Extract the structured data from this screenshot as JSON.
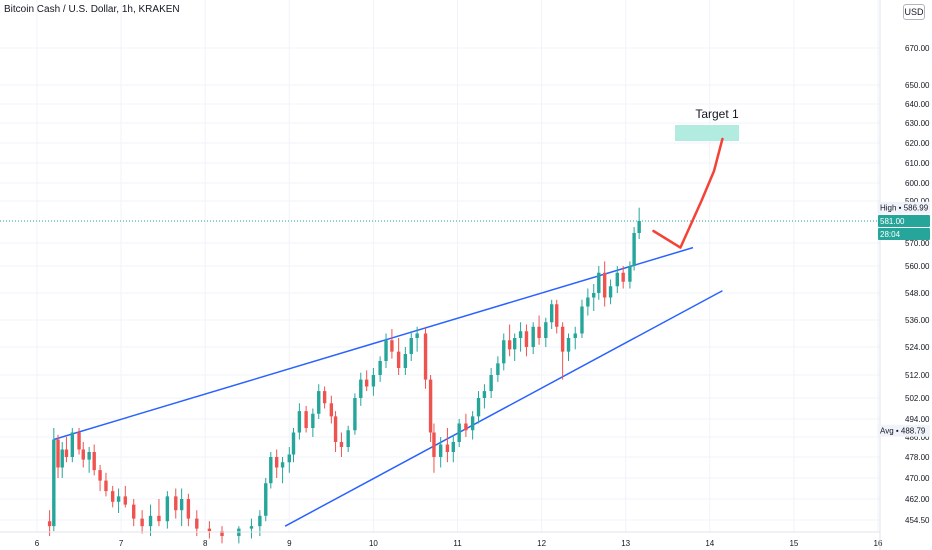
{
  "header": {
    "symbol_title": "Bitcoin Cash / U.S. Dollar, 1h, KRAKEN",
    "currency": "USD"
  },
  "colors": {
    "up": "#26a69a",
    "down": "#ef5350",
    "trendline": "#2962ff",
    "projection": "#f44336",
    "target_zone": "#b2ebe0",
    "last_price_bg": "#26a69a",
    "grid": "#f0f3fa"
  },
  "chart_data": {
    "type": "candlestick",
    "price_axis": {
      "ticks": [
        "670.00",
        "650.00",
        "640.00",
        "630.00",
        "620.00",
        "610.00",
        "600.00",
        "590.00",
        "570.00",
        "560.00",
        "548.00",
        "536.00",
        "524.00",
        "512.00",
        "502.00",
        "494.00",
        "486.00",
        "478.00",
        "470.00",
        "462.00",
        "454.50"
      ]
    },
    "time_axis": {
      "ticks": [
        "6",
        "7",
        "8",
        "9",
        "10",
        "11",
        "12",
        "13",
        "14",
        "15",
        "16"
      ]
    },
    "price_labels": {
      "high_label": "High",
      "high_value": "586.99",
      "last_price": "581.00",
      "countdown": "28:04",
      "avg_label": "Avg",
      "avg_value": "488.79"
    },
    "annotations": {
      "target_text": "Target 1",
      "target_zone_price_range": [
        621,
        629
      ]
    },
    "candles": [
      [
        6.15,
        454,
        458,
        448,
        452
      ],
      [
        6.2,
        452,
        490,
        450,
        485
      ],
      [
        6.25,
        485,
        487,
        470,
        474
      ],
      [
        6.3,
        474,
        484,
        470,
        481
      ],
      [
        6.35,
        481,
        486,
        476,
        478
      ],
      [
        6.42,
        478,
        490,
        476,
        488
      ],
      [
        6.5,
        488,
        490,
        479,
        481
      ],
      [
        6.55,
        481,
        484,
        474,
        477
      ],
      [
        6.62,
        477,
        482,
        472,
        480
      ],
      [
        6.68,
        480,
        483,
        471,
        473
      ],
      [
        6.75,
        473,
        475,
        465,
        469
      ],
      [
        6.82,
        469,
        472,
        463,
        465
      ],
      [
        6.9,
        465,
        467,
        459,
        461
      ],
      [
        6.97,
        461,
        466,
        457,
        463
      ],
      [
        7.05,
        463,
        467,
        459,
        460
      ],
      [
        7.15,
        460,
        462,
        452,
        455
      ],
      [
        7.25,
        455,
        458,
        449,
        452
      ],
      [
        7.35,
        452,
        460,
        448,
        456
      ],
      [
        7.45,
        456,
        462,
        452,
        454
      ],
      [
        7.55,
        454,
        465,
        451,
        463
      ],
      [
        7.65,
        463,
        466,
        455,
        458
      ],
      [
        7.72,
        458,
        466,
        452,
        462
      ],
      [
        7.8,
        462,
        464,
        452,
        455
      ],
      [
        7.9,
        455,
        458,
        448,
        451
      ],
      [
        8.05,
        451,
        454,
        447,
        450
      ],
      [
        8.2,
        450,
        452,
        445,
        448
      ],
      [
        8.4,
        448,
        452,
        445,
        451
      ],
      [
        8.55,
        451,
        455,
        447,
        452
      ],
      [
        8.65,
        452,
        458,
        448,
        456
      ],
      [
        8.72,
        456,
        470,
        454,
        468
      ],
      [
        8.78,
        468,
        480,
        466,
        478
      ],
      [
        8.85,
        478,
        481,
        470,
        474
      ],
      [
        8.92,
        474,
        478,
        468,
        476
      ],
      [
        9.0,
        476,
        482,
        472,
        479
      ],
      [
        9.05,
        479,
        490,
        476,
        488
      ],
      [
        9.12,
        488,
        500,
        485,
        497
      ],
      [
        9.2,
        497,
        499,
        488,
        490
      ],
      [
        9.28,
        490,
        498,
        486,
        496
      ],
      [
        9.35,
        496,
        508,
        494,
        505
      ],
      [
        9.42,
        505,
        507,
        498,
        500
      ],
      [
        9.5,
        500,
        503,
        492,
        495
      ],
      [
        9.55,
        495,
        497,
        480,
        484
      ],
      [
        9.62,
        484,
        488,
        478,
        482
      ],
      [
        9.7,
        482,
        491,
        480,
        489
      ],
      [
        9.78,
        489,
        504,
        487,
        502
      ],
      [
        9.85,
        502,
        513,
        499,
        510
      ],
      [
        9.92,
        510,
        514,
        505,
        507
      ],
      [
        10.0,
        507,
        515,
        503,
        512
      ],
      [
        10.08,
        512,
        520,
        509,
        518
      ],
      [
        10.15,
        518,
        530,
        515,
        527
      ],
      [
        10.22,
        527,
        532,
        519,
        522
      ],
      [
        10.3,
        522,
        528,
        512,
        515
      ],
      [
        10.38,
        515,
        524,
        512,
        521
      ],
      [
        10.45,
        521,
        531,
        518,
        528
      ],
      [
        10.52,
        528,
        533,
        522,
        530
      ],
      [
        10.62,
        530,
        533,
        506,
        510
      ],
      [
        10.68,
        510,
        512,
        484,
        488
      ],
      [
        10.72,
        488,
        492,
        472,
        478
      ],
      [
        10.8,
        478,
        486,
        474,
        483
      ],
      [
        10.88,
        483,
        490,
        476,
        480
      ],
      [
        10.95,
        480,
        487,
        476,
        484
      ],
      [
        11.02,
        484,
        494,
        482,
        492
      ],
      [
        11.1,
        492,
        496,
        486,
        489
      ],
      [
        11.18,
        489,
        497,
        485,
        495
      ],
      [
        11.25,
        495,
        505,
        492,
        502
      ],
      [
        11.32,
        502,
        508,
        498,
        505
      ],
      [
        11.4,
        505,
        515,
        502,
        512
      ],
      [
        11.48,
        512,
        520,
        509,
        517
      ],
      [
        11.55,
        517,
        530,
        514,
        527
      ],
      [
        11.62,
        527,
        534,
        520,
        523
      ],
      [
        11.68,
        523,
        530,
        518,
        528
      ],
      [
        11.75,
        528,
        535,
        522,
        531
      ],
      [
        11.82,
        531,
        534,
        520,
        524
      ],
      [
        11.9,
        524,
        535,
        521,
        533
      ],
      [
        11.97,
        533,
        538,
        525,
        528
      ],
      [
        12.05,
        528,
        537,
        524,
        535
      ],
      [
        12.12,
        535,
        545,
        532,
        543
      ],
      [
        12.18,
        543,
        545,
        530,
        533
      ],
      [
        12.25,
        533,
        535,
        510,
        522
      ],
      [
        12.32,
        522,
        530,
        518,
        528
      ],
      [
        12.4,
        528,
        533,
        523,
        530
      ],
      [
        12.48,
        530,
        545,
        528,
        542
      ],
      [
        12.55,
        542,
        550,
        538,
        546
      ],
      [
        12.62,
        546,
        552,
        540,
        548
      ],
      [
        12.68,
        548,
        560,
        545,
        557
      ],
      [
        12.75,
        557,
        562,
        542,
        546
      ],
      [
        12.82,
        546,
        554,
        543,
        551
      ],
      [
        12.9,
        551,
        560,
        548,
        557
      ],
      [
        12.97,
        557,
        560,
        550,
        553
      ],
      [
        13.05,
        553,
        562,
        550,
        560
      ],
      [
        13.1,
        560,
        578,
        558,
        575
      ],
      [
        13.16,
        575,
        587,
        572,
        581
      ]
    ],
    "trendlines": [
      {
        "from": [
          6.2,
          485
        ],
        "to": [
          13.8,
          568
        ]
      },
      {
        "from": [
          8.95,
          452
        ],
        "to": [
          14.15,
          549
        ]
      }
    ],
    "projection_path": [
      [
        13.33,
        576
      ],
      [
        13.65,
        568
      ],
      [
        13.9,
        590
      ],
      [
        14.05,
        606
      ],
      [
        14.15,
        622
      ]
    ]
  }
}
